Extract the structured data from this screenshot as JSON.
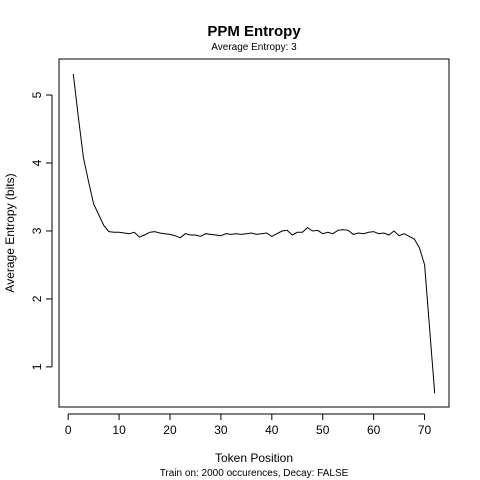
{
  "chart_data": {
    "type": "line",
    "title": "PPM Entropy",
    "subtitle": "Average Entropy: 3",
    "xlabel": "Token Position",
    "ylabel": "Average Entropy (bits)",
    "caption": "Train on: 2000 occurences, Decay: FALSE",
    "xlim": [
      -1.8,
      74.8
    ],
    "ylim": [
      0.41,
      5.53
    ],
    "x_ticks": [
      0,
      10,
      20,
      30,
      40,
      50,
      60,
      70
    ],
    "y_ticks": [
      1,
      2,
      3,
      4,
      5
    ],
    "grid": false,
    "series": [
      {
        "color": "#000000",
        "x": [
          1,
          2,
          3,
          4,
          5,
          6,
          7,
          8,
          9,
          10,
          11,
          12,
          13,
          14,
          15,
          16,
          17,
          18,
          19,
          20,
          21,
          22,
          23,
          24,
          25,
          26,
          27,
          28,
          29,
          30,
          31,
          32,
          33,
          34,
          35,
          36,
          37,
          38,
          39,
          40,
          41,
          42,
          43,
          44,
          45,
          46,
          47,
          48,
          49,
          50,
          51,
          52,
          53,
          54,
          55,
          56,
          57,
          58,
          59,
          60,
          61,
          62,
          63,
          64,
          65,
          66,
          67,
          68,
          69,
          70,
          71,
          72
        ],
        "y": [
          5.31,
          4.68,
          4.08,
          3.73,
          3.4,
          3.24,
          3.08,
          2.99,
          2.98,
          2.98,
          2.97,
          2.96,
          2.98,
          2.91,
          2.94,
          2.98,
          2.99,
          2.97,
          2.96,
          2.95,
          2.93,
          2.9,
          2.96,
          2.94,
          2.94,
          2.92,
          2.96,
          2.95,
          2.94,
          2.93,
          2.96,
          2.95,
          2.96,
          2.95,
          2.96,
          2.97,
          2.95,
          2.96,
          2.97,
          2.92,
          2.96,
          3.0,
          3.01,
          2.94,
          2.98,
          2.98,
          3.05,
          3.0,
          3.01,
          2.96,
          2.98,
          2.96,
          3.01,
          3.02,
          3.01,
          2.95,
          2.97,
          2.96,
          2.98,
          2.99,
          2.96,
          2.97,
          2.94,
          3.0,
          2.93,
          2.96,
          2.92,
          2.88,
          2.75,
          2.5,
          1.55,
          0.61
        ]
      }
    ]
  }
}
